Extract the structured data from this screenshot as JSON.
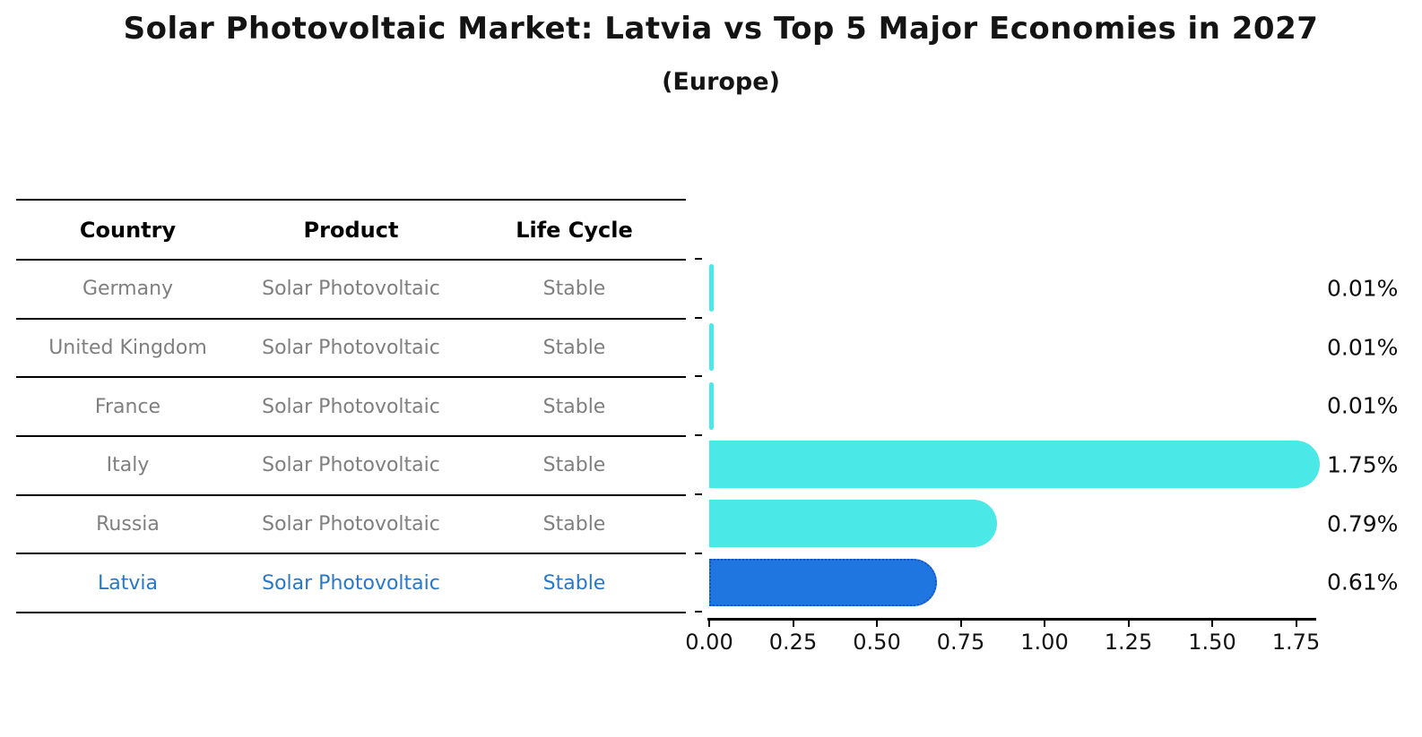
{
  "title": "Solar Photovoltaic Market: Latvia vs Top 5 Major Economies in 2027",
  "subtitle": "(Europe)",
  "table": {
    "headers": [
      "Country",
      "Product",
      "Life Cycle"
    ],
    "rows": [
      {
        "country": "Germany",
        "product": "Solar Photovoltaic",
        "life_cycle": "Stable"
      },
      {
        "country": "United Kingdom",
        "product": "Solar Photovoltaic",
        "life_cycle": "Stable"
      },
      {
        "country": "France",
        "product": "Solar Photovoltaic",
        "life_cycle": "Stable"
      },
      {
        "country": "Italy",
        "product": "Solar Photovoltaic",
        "life_cycle": "Stable"
      },
      {
        "country": "Russia",
        "product": "Solar Photovoltaic",
        "life_cycle": "Stable"
      },
      {
        "country": "Latvia",
        "product": "Solar Photovoltaic",
        "life_cycle": "Stable"
      }
    ]
  },
  "chart_data": {
    "type": "bar",
    "orientation": "horizontal",
    "title": "Solar Photovoltaic Market: Latvia vs Top 5 Major Economies in 2027 (Europe)",
    "categories": [
      "Germany",
      "United Kingdom",
      "France",
      "Italy",
      "Russia",
      "Latvia"
    ],
    "values": [
      0.01,
      0.01,
      0.01,
      1.75,
      0.79,
      0.61
    ],
    "value_labels": [
      "0.01%",
      "0.01%",
      "0.01%",
      "1.75%",
      "0.79%",
      "0.61%"
    ],
    "xticks": [
      "0.00",
      "0.25",
      "0.50",
      "0.75",
      "1.00",
      "1.25",
      "1.50",
      "1.75"
    ],
    "xlim": [
      0,
      1.8
    ],
    "xlabel": "",
    "ylabel": "",
    "grid": false,
    "legend": "none",
    "highlight_index": 5
  },
  "colors": {
    "bar": "#4AE8E6",
    "highlight_bar": "#2076E0",
    "highlight_border": "#1355C8",
    "highlight_text": "#2878C8",
    "table_text": "#7f7f7f",
    "header_text": "#000000",
    "axis": "#000000"
  }
}
